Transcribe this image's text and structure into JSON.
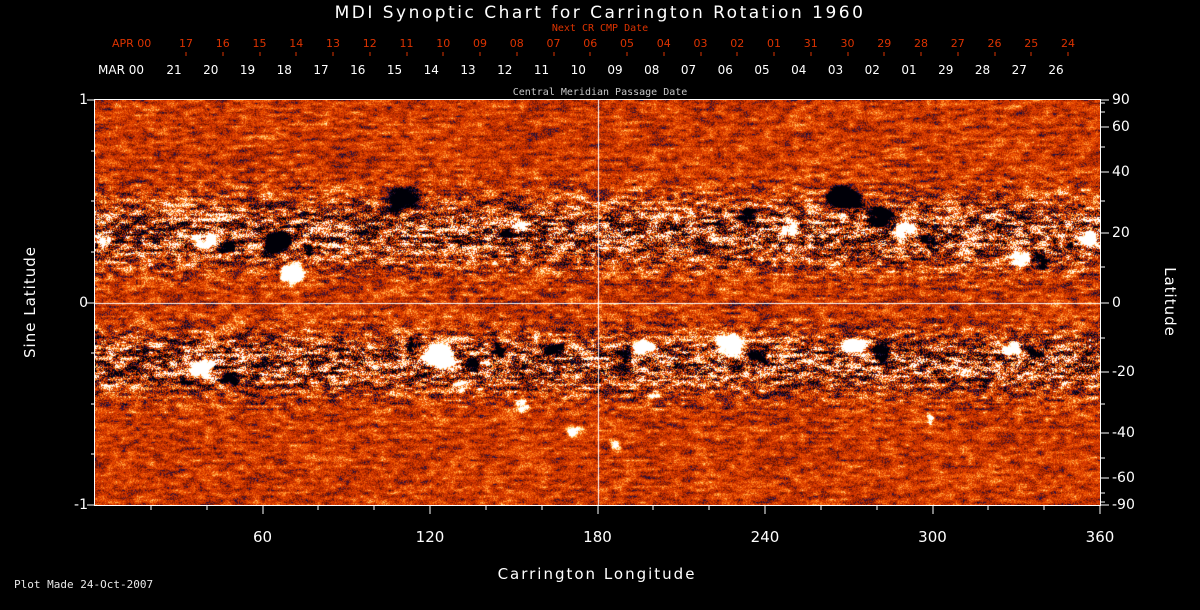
{
  "chart_data": {
    "type": "heatmap",
    "title": "MDI Synoptic Chart for Carrington Rotation 1960",
    "top_axis_red": {
      "prefix": "APR 00",
      "axis_label": "Next CR CMP Date",
      "color": "#dd3300",
      "ticks": [
        "17",
        "16",
        "15",
        "14",
        "13",
        "12",
        "11",
        "10",
        "09",
        "08",
        "07",
        "06",
        "05",
        "04",
        "03",
        "02",
        "01",
        "31",
        "30",
        "29",
        "28",
        "27",
        "26",
        "25",
        "24"
      ]
    },
    "top_axis_white": {
      "prefix": "MAR 00",
      "axis_label": "Central Meridian Passage Date",
      "ticks": [
        "21",
        "20",
        "19",
        "18",
        "17",
        "16",
        "15",
        "14",
        "13",
        "12",
        "11",
        "10",
        "09",
        "08",
        "07",
        "06",
        "05",
        "04",
        "03",
        "02",
        "01",
        "29",
        "28",
        "27",
        "26"
      ]
    },
    "x_axis": {
      "label": "Carrington Longitude",
      "range": [
        0,
        360
      ],
      "ticks": [
        60,
        120,
        180,
        240,
        300,
        360
      ],
      "minor_step": 20
    },
    "y_left": {
      "label": "Sine Latitude",
      "range": [
        -1,
        1
      ],
      "ticks": [
        1,
        0,
        -1
      ],
      "minor_step": 0.25
    },
    "y_right": {
      "label": "Latitude",
      "ticks": [
        90,
        60,
        40,
        20,
        0,
        -20,
        -40,
        -60,
        -90
      ],
      "minor_step": 10
    },
    "grid": {
      "vertical_longitude": 180,
      "horizontal_sine_latitude": 0,
      "color": "#ffffff"
    },
    "footnote": "Plot Made 24-Oct-2007",
    "palette": [
      {
        "pos": 0.0,
        "color": "#000008"
      },
      {
        "pos": 0.08,
        "color": "#0b0b2a"
      },
      {
        "pos": 0.14,
        "color": "#1e1450"
      },
      {
        "pos": 0.2,
        "color": "#3c1238"
      },
      {
        "pos": 0.26,
        "color": "#6e1502"
      },
      {
        "pos": 0.34,
        "color": "#9c2300"
      },
      {
        "pos": 0.44,
        "color": "#c43000"
      },
      {
        "pos": 0.54,
        "color": "#d93a00"
      },
      {
        "pos": 0.64,
        "color": "#ef5500"
      },
      {
        "pos": 0.74,
        "color": "#ff7c1e"
      },
      {
        "pos": 0.82,
        "color": "#ffa944"
      },
      {
        "pos": 0.9,
        "color": "#ffd884"
      },
      {
        "pos": 0.96,
        "color": "#fff2cc"
      },
      {
        "pos": 1.0,
        "color": "#ffffff"
      }
    ],
    "noise": {
      "seed": 1960,
      "band_centers": [
        0.34,
        -0.3
      ],
      "band_widths": [
        0.17,
        0.15
      ],
      "band_boost": 1.9,
      "base_spread": 0.5
    },
    "active_regions": [
      [
        9,
        0.32,
        7,
        "b",
        0.5
      ],
      [
        4,
        0.3,
        6,
        "w",
        0.5
      ],
      [
        39,
        0.31,
        10,
        "w",
        0.7
      ],
      [
        47,
        0.27,
        8,
        "b",
        0.6
      ],
      [
        65,
        0.3,
        13,
        "b",
        0.65
      ],
      [
        70,
        0.15,
        11,
        "w",
        0.7
      ],
      [
        78,
        0.26,
        7,
        "b",
        0.5
      ],
      [
        110,
        0.5,
        16,
        "b",
        0.3
      ],
      [
        152,
        0.37,
        7,
        "w",
        0.6
      ],
      [
        147,
        0.33,
        7,
        "b",
        0.45
      ],
      [
        233,
        0.43,
        10,
        "b",
        0.5
      ],
      [
        249,
        0.36,
        8,
        "w",
        0.55
      ],
      [
        268,
        0.51,
        14,
        "b",
        0.55
      ],
      [
        281,
        0.43,
        12,
        "b",
        0.5
      ],
      [
        290,
        0.36,
        9,
        "w",
        0.7
      ],
      [
        299,
        0.31,
        8,
        "b",
        0.5
      ],
      [
        331,
        0.22,
        9,
        "w",
        0.65
      ],
      [
        338,
        0.2,
        8,
        "b",
        0.5
      ],
      [
        356,
        0.32,
        10,
        "w",
        0.75
      ],
      [
        350,
        0.28,
        6,
        "b",
        0.4
      ],
      [
        39,
        -0.32,
        11,
        "w",
        0.75
      ],
      [
        48,
        -0.37,
        9,
        "b",
        0.6
      ],
      [
        33,
        -0.38,
        6,
        "b",
        0.5
      ],
      [
        113,
        -0.21,
        6,
        "b",
        0.45
      ],
      [
        122,
        -0.27,
        14,
        "w",
        0.8
      ],
      [
        134,
        -0.32,
        10,
        "b",
        0.6
      ],
      [
        145,
        -0.23,
        8,
        "b",
        0.5
      ],
      [
        152,
        -0.33,
        7,
        "b",
        0.45
      ],
      [
        165,
        -0.23,
        9,
        "b",
        0.55
      ],
      [
        197,
        -0.22,
        9,
        "w",
        0.7
      ],
      [
        189,
        -0.25,
        7,
        "b",
        0.5
      ],
      [
        227,
        -0.21,
        12,
        "w",
        0.75
      ],
      [
        237,
        -0.27,
        9,
        "b",
        0.6
      ],
      [
        272,
        -0.21,
        10,
        "w",
        0.7
      ],
      [
        281,
        -0.25,
        9,
        "b",
        0.6
      ],
      [
        328,
        -0.23,
        9,
        "w",
        0.7
      ],
      [
        337,
        -0.25,
        7,
        "b",
        0.5
      ],
      [
        299,
        -0.58,
        5,
        "w",
        0.5
      ],
      [
        131,
        -0.41,
        8,
        "w",
        0.35
      ],
      [
        152,
        -0.51,
        9,
        "w",
        0.3
      ],
      [
        172,
        -0.63,
        8,
        "w",
        0.3
      ],
      [
        186,
        -0.7,
        7,
        "w",
        0.25
      ],
      [
        200,
        -0.45,
        6,
        "w",
        0.3
      ]
    ]
  }
}
